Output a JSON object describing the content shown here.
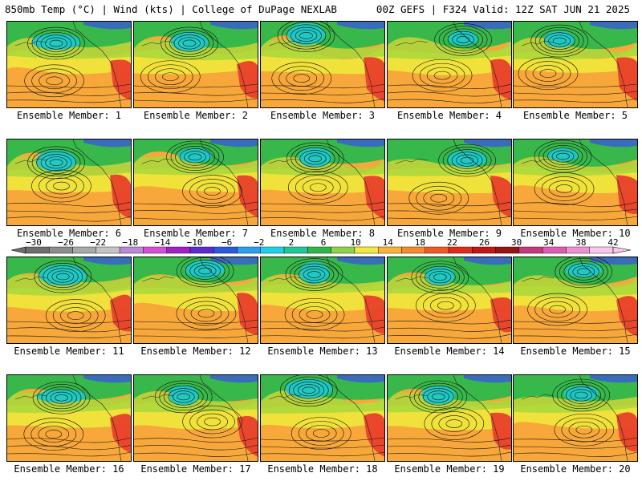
{
  "header": {
    "left": "850mb Temp (°C) | Wind (kts) | College of DuPage NEXLAB",
    "right": "00Z GEFS | F324 Valid: 12Z SAT JUN 21 2025"
  },
  "member_label_prefix": "Ensemble Member: ",
  "members": [
    {
      "number": "1"
    },
    {
      "number": "2"
    },
    {
      "number": "3"
    },
    {
      "number": "4"
    },
    {
      "number": "5"
    },
    {
      "number": "6"
    },
    {
      "number": "7"
    },
    {
      "number": "8"
    },
    {
      "number": "9"
    },
    {
      "number": "10"
    },
    {
      "number": "11"
    },
    {
      "number": "12"
    },
    {
      "number": "13"
    },
    {
      "number": "14"
    },
    {
      "number": "15"
    },
    {
      "number": "16"
    },
    {
      "number": "17"
    },
    {
      "number": "18"
    },
    {
      "number": "19"
    },
    {
      "number": "20"
    }
  ],
  "colorbar": {
    "tick_labels": [
      "−30",
      "−26",
      "−22",
      "−18",
      "−14",
      "−10",
      "−6",
      "−2",
      "2",
      "6",
      "10",
      "14",
      "18",
      "22",
      "26",
      "30",
      "34",
      "38",
      "42"
    ],
    "colors": [
      "#6e6e6e",
      "#8c8c8c",
      "#a8a8a8",
      "#c4c4c4",
      "#b98ad8",
      "#d94ed9",
      "#a020c8",
      "#5a2ad2",
      "#2a5ae0",
      "#2a9ff0",
      "#1ed2e6",
      "#1ec89a",
      "#2db84b",
      "#8fd14a",
      "#f0e83c",
      "#f8b23a",
      "#f58a2a",
      "#ee5a22",
      "#e22a1c",
      "#c41414",
      "#961414",
      "#c43a7a",
      "#e05ab0",
      "#f090d2",
      "#f8c8ec"
    ],
    "map_palette": {
      "ocean_cold": "#1ec8c8",
      "green": "#2db84b",
      "yellow_green": "#a8d83c",
      "yellow": "#f0e83c",
      "orange": "#f8a83a",
      "hot": "#e8402a"
    }
  }
}
